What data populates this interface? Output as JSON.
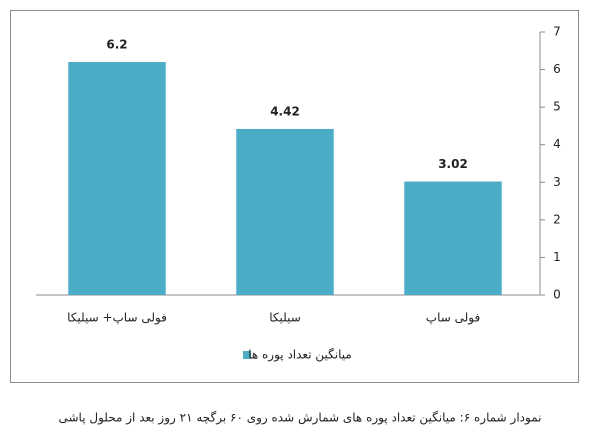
{
  "chart_data": {
    "type": "bar",
    "categories": [
      "فولی ساپ+ سیلیکا",
      "سیلیکا",
      "فولی ساپ"
    ],
    "series": [
      {
        "name": "میانگین تعداد پوره ها",
        "color": "#4bacc6",
        "values": [
          6.2,
          4.42,
          3.02
        ]
      }
    ],
    "ylim": [
      0,
      7
    ],
    "yticks": [
      0,
      1,
      2,
      3,
      4,
      5,
      6,
      7
    ],
    "y_axis_position": "right",
    "legend": "bottom",
    "grid": false
  },
  "caption": "نمودار شماره ۶: میانگین تعداد پوره های شمارش شده روی ۶۰ برگچه ۲۱ روز بعد از محلول پاشی"
}
